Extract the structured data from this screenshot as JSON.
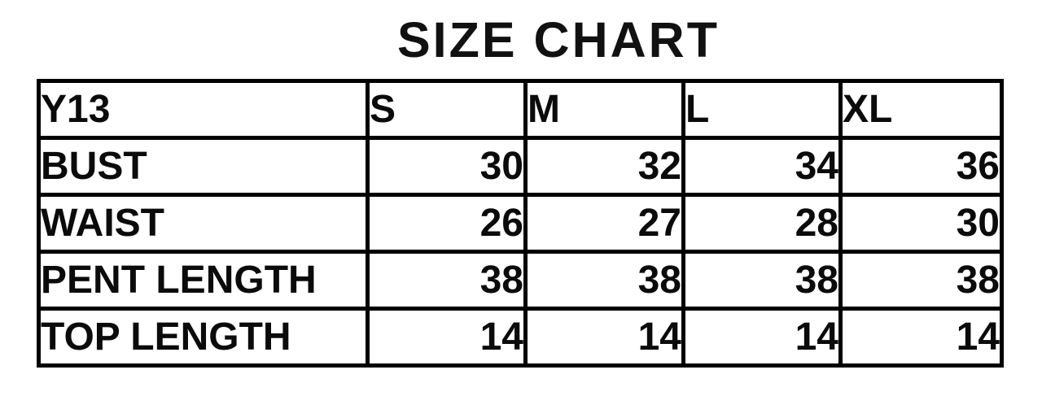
{
  "title": "SIZE CHART",
  "chart_data": {
    "type": "table",
    "title": "SIZE CHART",
    "columns": [
      "Y13",
      "S",
      "M",
      "L",
      "XL"
    ],
    "rows": [
      {
        "label": "BUST",
        "values": [
          30,
          32,
          34,
          36
        ]
      },
      {
        "label": "WAIST",
        "values": [
          26,
          27,
          28,
          30
        ]
      },
      {
        "label": "PENT LENGTH",
        "values": [
          38,
          38,
          38,
          38
        ]
      },
      {
        "label": "TOP LENGTH",
        "values": [
          14,
          14,
          14,
          14
        ]
      }
    ],
    "layout": {
      "header_position": "top-row",
      "label_alignment": "left",
      "value_alignment": "right",
      "border_color": "#000000",
      "background_color": "#ffffff",
      "text_color": "#0b0b0b"
    }
  }
}
